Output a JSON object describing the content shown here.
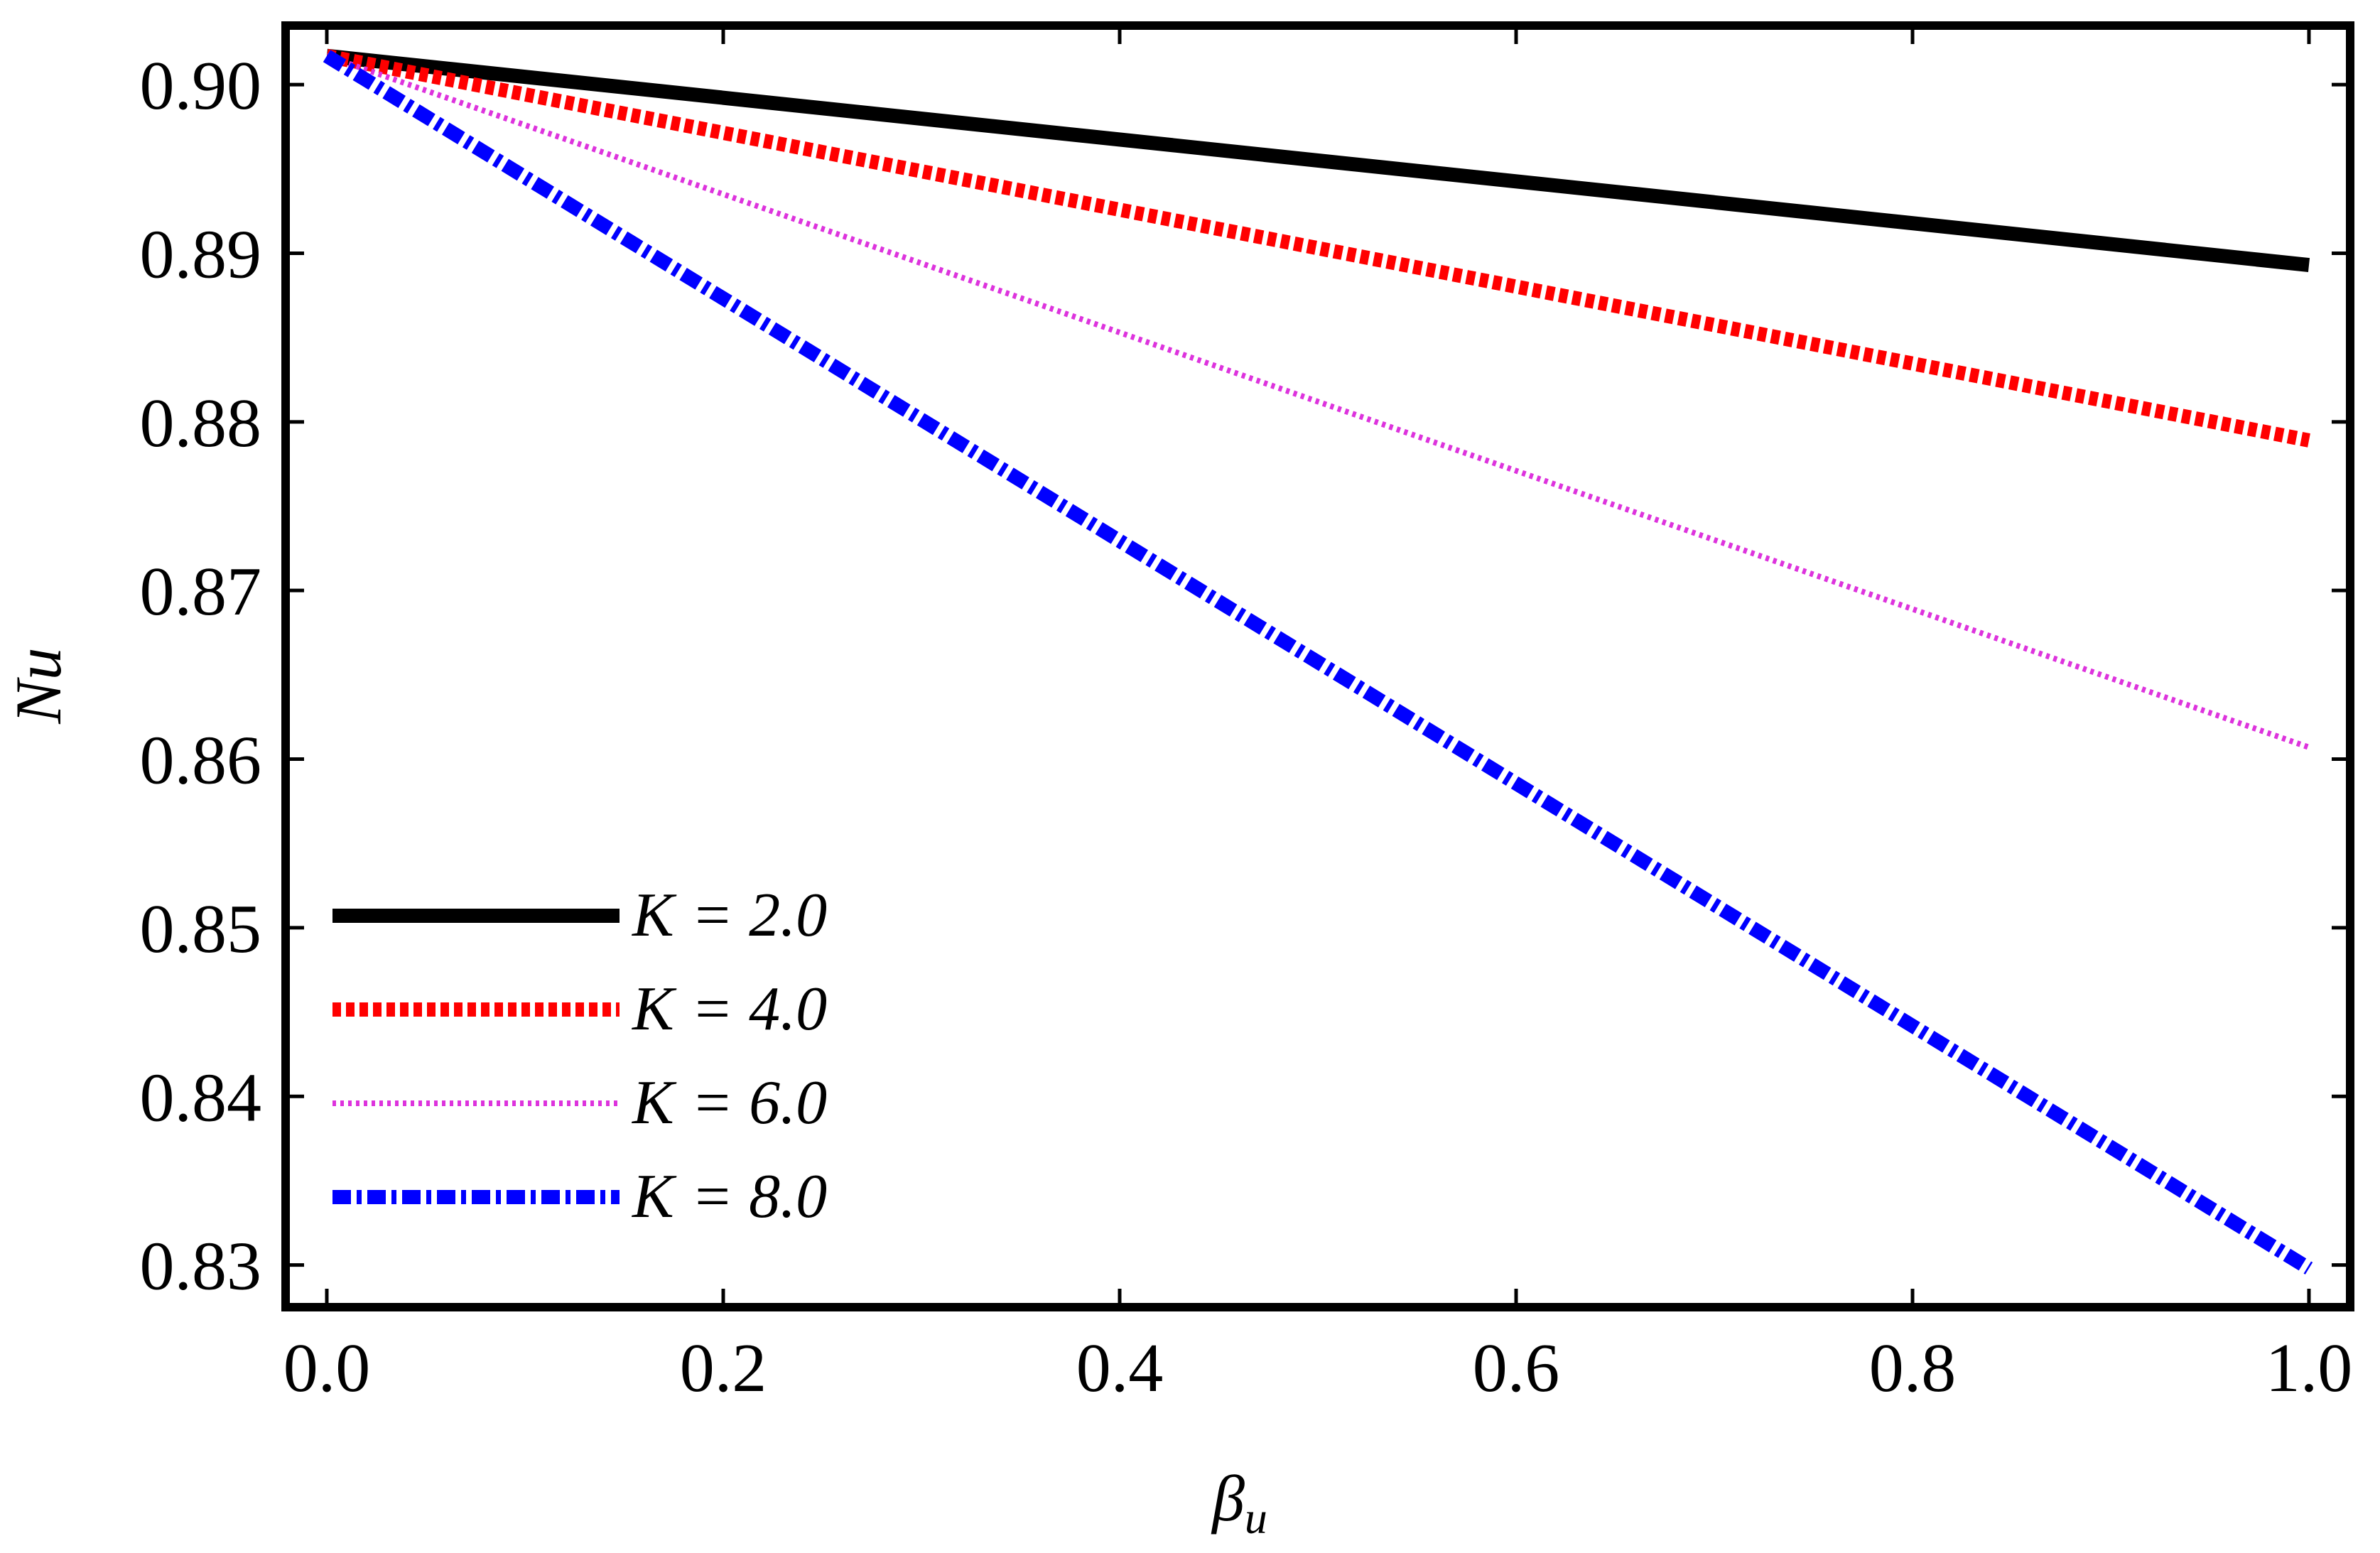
{
  "chart_data": {
    "type": "line",
    "title": "",
    "xlabel": "βu",
    "xlabel_parts": {
      "symbol": "β",
      "subscript": "u"
    },
    "ylabel": "Nu",
    "xlim": [
      0.0,
      1.0
    ],
    "ylim": [
      0.8275,
      0.9035
    ],
    "xticks": [
      {
        "value": 0.0,
        "label": "0.0"
      },
      {
        "value": 0.2,
        "label": "0.2"
      },
      {
        "value": 0.4,
        "label": "0.4"
      },
      {
        "value": 0.6,
        "label": "0.6"
      },
      {
        "value": 0.8,
        "label": "0.8"
      },
      {
        "value": 1.0,
        "label": "1.0"
      }
    ],
    "yticks": [
      {
        "value": 0.83,
        "label": "0.83"
      },
      {
        "value": 0.84,
        "label": "0.84"
      },
      {
        "value": 0.85,
        "label": "0.85"
      },
      {
        "value": 0.86,
        "label": "0.86"
      },
      {
        "value": 0.87,
        "label": "0.87"
      },
      {
        "value": 0.88,
        "label": "0.88"
      },
      {
        "value": 0.89,
        "label": "0.89"
      },
      {
        "value": 0.9,
        "label": "0.90"
      }
    ],
    "grid": false,
    "legend_position": "bottom-left",
    "series": [
      {
        "name": "K = 2.0",
        "label_symbol": "K",
        "label_value": "= 2.0",
        "color": "#000000",
        "style": "solid",
        "x": [
          0.0,
          1.0
        ],
        "y": [
          0.9017,
          0.8893
        ]
      },
      {
        "name": "K = 4.0",
        "label_symbol": "K",
        "label_value": "= 4.0",
        "color": "#ff0000",
        "style": "dashed",
        "x": [
          0.0,
          1.0
        ],
        "y": [
          0.9017,
          0.8789
        ]
      },
      {
        "name": "K = 6.0",
        "label_symbol": "K",
        "label_value": "= 6.0",
        "color": "#dd33dd",
        "style": "dotted",
        "x": [
          0.0,
          1.0
        ],
        "y": [
          0.9017,
          0.8607
        ]
      },
      {
        "name": "K = 8.0",
        "label_symbol": "K",
        "label_value": "= 8.0",
        "color": "#0000ff",
        "style": "dashdot",
        "x": [
          0.0,
          1.0
        ],
        "y": [
          0.9017,
          0.8298
        ]
      }
    ]
  }
}
